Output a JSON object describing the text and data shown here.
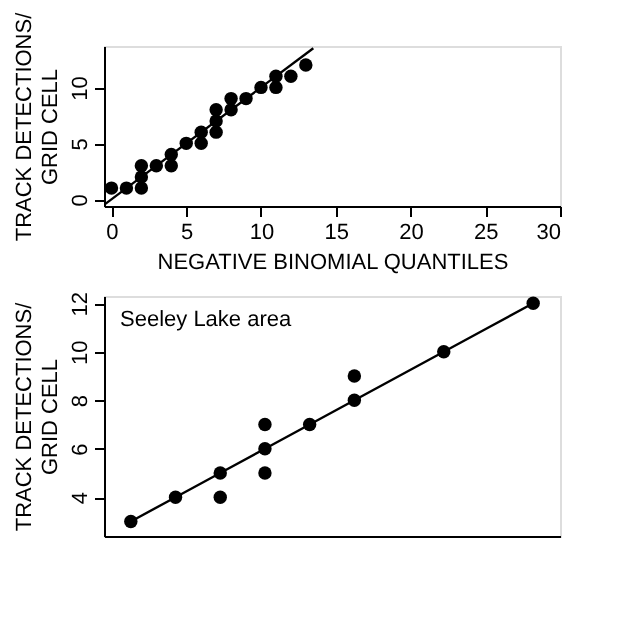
{
  "chart_data": [
    {
      "type": "scatter",
      "xlabel": "NEGATIVE BINOMIAL QUANTILES",
      "ylabel": "TRACK DETECTIONS/\nGRID CELL",
      "xlim": [
        -0.5,
        30
      ],
      "ylim": [
        -0.6,
        13.7
      ],
      "xticks": [
        0,
        5,
        10,
        15,
        20,
        25,
        30
      ],
      "yticks": [
        0,
        5,
        10
      ],
      "grid": false,
      "series": [
        {
          "color": "#000000",
          "marker": "circle",
          "x": [
            0,
            1,
            2,
            2,
            2,
            3,
            4,
            4,
            5,
            6,
            6,
            7,
            7,
            7,
            8,
            8,
            9,
            10,
            11,
            11,
            12,
            13
          ],
          "values": [
            1,
            1,
            1,
            2,
            3,
            3,
            3,
            4,
            5,
            5,
            6,
            6,
            7,
            8,
            8,
            9,
            9,
            10,
            10,
            11,
            11,
            12
          ]
        },
        {
          "type": "line",
          "color": "#000000",
          "line_style": "solid",
          "x": [
            -0.5,
            13.5
          ],
          "values": [
            -0.5,
            13.5
          ]
        }
      ]
    },
    {
      "type": "scatter",
      "ylabel": "TRACK DETECTIONS/\nGRID CELL",
      "annotations": [
        "Seeley Lake area"
      ],
      "categories": [
        null,
        null,
        null,
        null,
        null,
        null,
        null,
        null,
        null,
        null
      ],
      "ylim": [
        2.4,
        12.3
      ],
      "yticks": [
        4,
        6,
        8,
        10,
        12
      ],
      "tick_labels": "y",
      "grid": false,
      "series": [
        {
          "color": "#000000",
          "marker": "circle",
          "values": [
            3,
            4,
            5,
            6,
            7,
            8,
            null,
            10,
            null,
            12
          ]
        },
        {
          "color": "#000000",
          "marker": "circle",
          "values": [
            null,
            null,
            4,
            7,
            null,
            9,
            null,
            null,
            null,
            null
          ]
        },
        {
          "color": "#000000",
          "marker": "circle",
          "values": [
            null,
            null,
            null,
            5,
            null,
            null,
            null,
            null,
            null,
            null
          ]
        },
        {
          "type": "line",
          "color": "#000000",
          "line_style": "solid",
          "values": [
            3,
            4,
            5,
            6,
            7,
            8,
            9,
            10,
            11,
            12
          ]
        }
      ]
    }
  ]
}
